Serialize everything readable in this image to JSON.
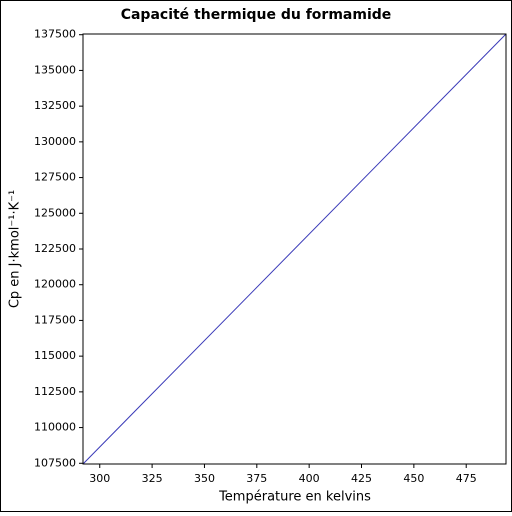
{
  "chart_data": {
    "type": "line",
    "title": "Capacité thermique du formamide",
    "x_label": "Température en kelvins",
    "y_label": "Cp en J·kmol⁻¹·K⁻¹",
    "x": [
      292,
      494
    ],
    "values": [
      107450,
      137550
    ],
    "color": "#3a3ab8",
    "xlim": [
      292,
      494
    ],
    "ylim": [
      107450,
      137550
    ],
    "xticks": [
      300,
      325,
      350,
      375,
      400,
      425,
      450,
      475
    ],
    "yticks": [
      107500,
      110000,
      112500,
      115000,
      117500,
      120000,
      122500,
      125000,
      127500,
      130000,
      132500,
      135000,
      137500
    ],
    "grid": false
  }
}
